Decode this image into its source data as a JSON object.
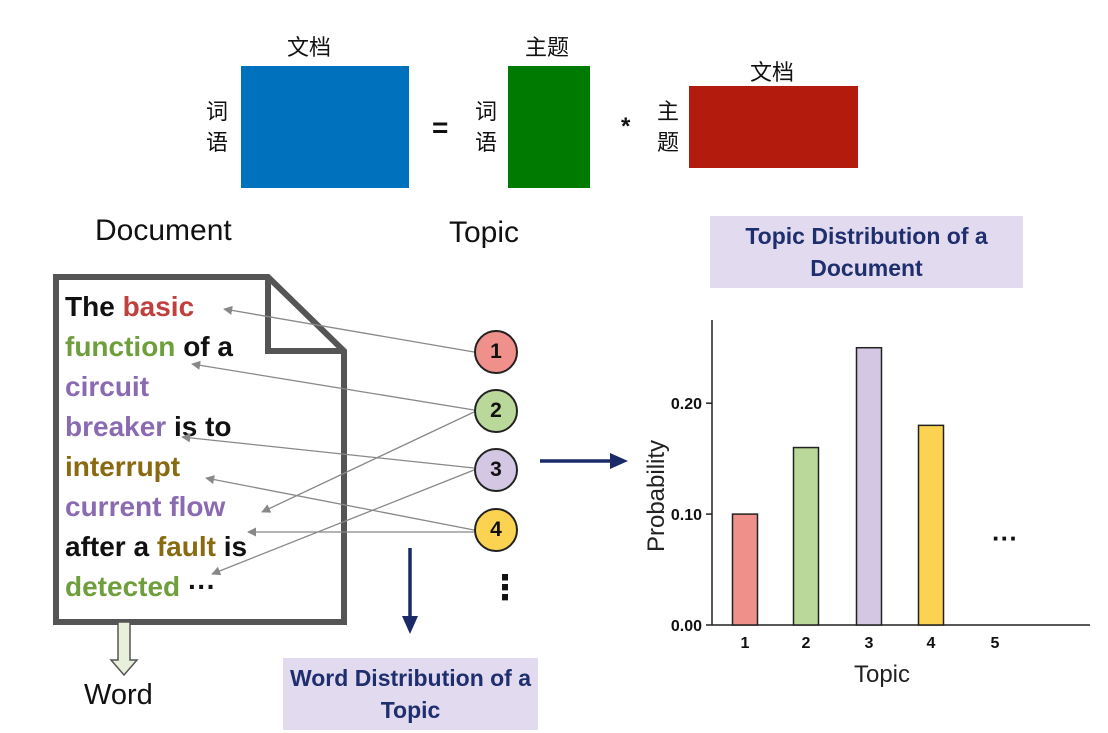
{
  "matrix": {
    "left_top_label": "文档",
    "left_side_label": "词语",
    "equals": "=",
    "middle_top_label": "主题",
    "middle_side_label": "词语",
    "times": "*",
    "right_top_label": "文档",
    "right_side_label": "主题",
    "colors": {
      "left": "#0071bc",
      "middle": "#007a00",
      "right": "#b31b0c"
    }
  },
  "labels": {
    "document": "Document",
    "topic": "Topic",
    "word": "Word"
  },
  "document_text": {
    "line1": [
      "The",
      "basic"
    ],
    "line2": [
      "function",
      "of a"
    ],
    "line3": [
      "circuit"
    ],
    "line4": [
      "breaker",
      "is to"
    ],
    "line5": [
      "interrupt"
    ],
    "line6": [
      "current flow"
    ],
    "line7": [
      "after a",
      "fault",
      "is"
    ],
    "line8": [
      "detected",
      "···"
    ],
    "colors": {
      "red": "#c0403e",
      "green": "#6e9f3c",
      "purple": "#8a6ab0",
      "olive": "#8a6a10",
      "black": "#111111"
    }
  },
  "topics": [
    {
      "label": "1",
      "color": "#ef908a"
    },
    {
      "label": "2",
      "color": "#b9d89a"
    },
    {
      "label": "3",
      "color": "#d3c7e4"
    },
    {
      "label": "4",
      "color": "#fbd350"
    }
  ],
  "topics_more": "⋮",
  "banners": {
    "word_distribution": "Word Distribution of a Topic",
    "topic_distribution": "Topic Distribution of a Document"
  },
  "chart_data": {
    "type": "bar",
    "categories": [
      "1",
      "2",
      "3",
      "4",
      "5"
    ],
    "values": [
      0.1,
      0.16,
      0.25,
      0.18,
      null
    ],
    "bar_colors": [
      "#ef908a",
      "#b9d89a",
      "#d3c7e4",
      "#fbd350",
      null
    ],
    "y_ticks": [
      "0.00",
      "0.10",
      "0.20"
    ],
    "ylim": [
      0,
      0.275
    ],
    "xlabel": "Topic",
    "ylabel": "Probability",
    "more": "···"
  }
}
